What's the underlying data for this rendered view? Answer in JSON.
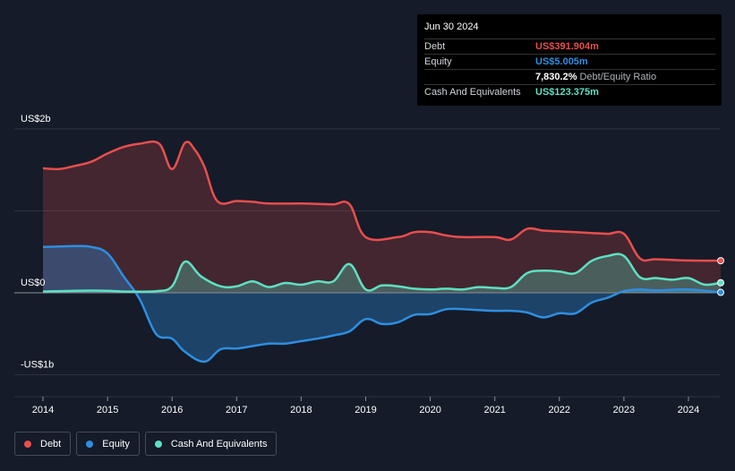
{
  "tooltip": {
    "date": "Jun 30 2024",
    "rows": [
      {
        "label": "Debt",
        "value": "US$391.904m",
        "color": "#e84e4e",
        "extra": ""
      },
      {
        "label": "Equity",
        "value": "US$5.005m",
        "color": "#2e8ee0",
        "extra": ""
      },
      {
        "label": "",
        "value": "7,830.2%",
        "color": "#ffffff",
        "extra": "Debt/Equity Ratio"
      },
      {
        "label": "Cash And Equivalents",
        "value": "US$123.375m",
        "color": "#5ee0c2",
        "extra": ""
      }
    ]
  },
  "legend": [
    {
      "label": "Debt",
      "color": "#e84e4e"
    },
    {
      "label": "Equity",
      "color": "#2e8ee0"
    },
    {
      "label": "Cash And Equivalents",
      "color": "#5ee0c2"
    }
  ],
  "chart_data": {
    "type": "area",
    "y_unit": "US$ millions",
    "ylim": [
      -1000,
      2000
    ],
    "y_tick_labels": [
      {
        "value": 2000,
        "label": "US$2b"
      },
      {
        "value": 0,
        "label": "US$0"
      },
      {
        "value": -1000,
        "label": "-US$1b"
      }
    ],
    "xlim": [
      2013.75,
      2024.5
    ],
    "x_ticks": [
      2014,
      2015,
      2016,
      2017,
      2018,
      2019,
      2020,
      2021,
      2022,
      2023,
      2024
    ],
    "series": [
      {
        "name": "Debt",
        "color": "#e84e4e",
        "points": [
          [
            2014.0,
            1520
          ],
          [
            2014.25,
            1510
          ],
          [
            2014.5,
            1550
          ],
          [
            2014.75,
            1600
          ],
          [
            2015.0,
            1700
          ],
          [
            2015.25,
            1780
          ],
          [
            2015.5,
            1820
          ],
          [
            2015.8,
            1820
          ],
          [
            2016.0,
            1510
          ],
          [
            2016.2,
            1830
          ],
          [
            2016.35,
            1750
          ],
          [
            2016.5,
            1540
          ],
          [
            2016.7,
            1120
          ],
          [
            2017.0,
            1120
          ],
          [
            2017.25,
            1110
          ],
          [
            2017.5,
            1090
          ],
          [
            2018.0,
            1090
          ],
          [
            2018.25,
            1085
          ],
          [
            2018.5,
            1080
          ],
          [
            2018.75,
            1080
          ],
          [
            2019.0,
            680
          ],
          [
            2019.5,
            680
          ],
          [
            2019.75,
            740
          ],
          [
            2020.0,
            740
          ],
          [
            2020.25,
            700
          ],
          [
            2020.5,
            680
          ],
          [
            2021.0,
            680
          ],
          [
            2021.25,
            650
          ],
          [
            2021.5,
            780
          ],
          [
            2021.75,
            760
          ],
          [
            2022.0,
            750
          ],
          [
            2022.5,
            730
          ],
          [
            2022.75,
            720
          ],
          [
            2023.0,
            720
          ],
          [
            2023.25,
            420
          ],
          [
            2023.5,
            410
          ],
          [
            2024.0,
            395
          ],
          [
            2024.5,
            392
          ]
        ]
      },
      {
        "name": "Equity",
        "color": "#2e8ee0",
        "points": [
          [
            2014.0,
            560
          ],
          [
            2014.25,
            565
          ],
          [
            2014.5,
            570
          ],
          [
            2014.75,
            560
          ],
          [
            2015.0,
            480
          ],
          [
            2015.25,
            200
          ],
          [
            2015.5,
            -80
          ],
          [
            2015.75,
            -500
          ],
          [
            2016.0,
            -560
          ],
          [
            2016.2,
            -720
          ],
          [
            2016.5,
            -840
          ],
          [
            2016.75,
            -690
          ],
          [
            2017.0,
            -680
          ],
          [
            2017.25,
            -650
          ],
          [
            2017.5,
            -620
          ],
          [
            2017.75,
            -620
          ],
          [
            2018.0,
            -590
          ],
          [
            2018.25,
            -560
          ],
          [
            2018.5,
            -520
          ],
          [
            2018.75,
            -470
          ],
          [
            2019.0,
            -320
          ],
          [
            2019.25,
            -380
          ],
          [
            2019.5,
            -360
          ],
          [
            2019.75,
            -270
          ],
          [
            2020.0,
            -260
          ],
          [
            2020.25,
            -200
          ],
          [
            2020.5,
            -200
          ],
          [
            2020.75,
            -210
          ],
          [
            2021.0,
            -220
          ],
          [
            2021.25,
            -220
          ],
          [
            2021.5,
            -240
          ],
          [
            2021.75,
            -300
          ],
          [
            2022.0,
            -250
          ],
          [
            2022.25,
            -250
          ],
          [
            2022.5,
            -120
          ],
          [
            2022.75,
            -60
          ],
          [
            2023.0,
            20
          ],
          [
            2023.25,
            40
          ],
          [
            2023.5,
            30
          ],
          [
            2024.0,
            40
          ],
          [
            2024.5,
            5
          ]
        ]
      },
      {
        "name": "Cash And Equivalents",
        "color": "#5ee0c2",
        "points": [
          [
            2014.0,
            15
          ],
          [
            2014.5,
            25
          ],
          [
            2015.0,
            25
          ],
          [
            2015.25,
            15
          ],
          [
            2015.75,
            20
          ],
          [
            2016.0,
            80
          ],
          [
            2016.2,
            380
          ],
          [
            2016.45,
            200
          ],
          [
            2016.75,
            80
          ],
          [
            2017.0,
            80
          ],
          [
            2017.25,
            140
          ],
          [
            2017.5,
            70
          ],
          [
            2017.75,
            120
          ],
          [
            2018.0,
            100
          ],
          [
            2018.25,
            140
          ],
          [
            2018.5,
            140
          ],
          [
            2018.75,
            350
          ],
          [
            2019.0,
            40
          ],
          [
            2019.25,
            90
          ],
          [
            2019.5,
            80
          ],
          [
            2019.75,
            50
          ],
          [
            2020.0,
            40
          ],
          [
            2020.25,
            50
          ],
          [
            2020.5,
            40
          ],
          [
            2020.75,
            70
          ],
          [
            2021.0,
            60
          ],
          [
            2021.25,
            70
          ],
          [
            2021.5,
            240
          ],
          [
            2021.75,
            270
          ],
          [
            2022.0,
            260
          ],
          [
            2022.25,
            240
          ],
          [
            2022.5,
            390
          ],
          [
            2022.75,
            450
          ],
          [
            2023.0,
            450
          ],
          [
            2023.25,
            190
          ],
          [
            2023.5,
            180
          ],
          [
            2023.75,
            160
          ],
          [
            2024.0,
            180
          ],
          [
            2024.25,
            100
          ],
          [
            2024.5,
            123
          ]
        ]
      }
    ],
    "legend_position": "bottom-left",
    "grid": true
  }
}
